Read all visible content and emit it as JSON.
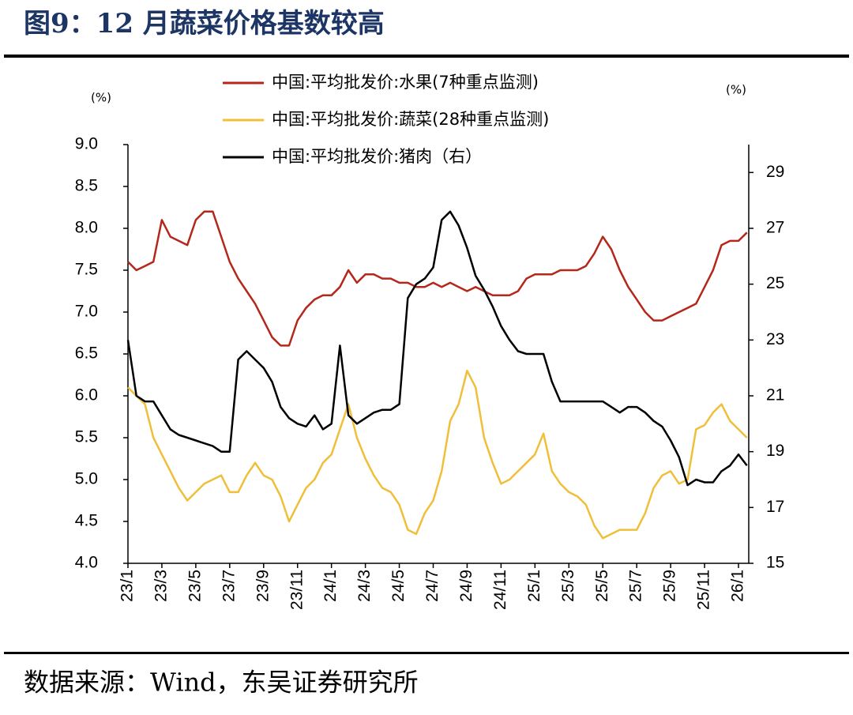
{
  "header": {
    "title": "图9：12 月蔬菜价格基数较高"
  },
  "chart_data": {
    "type": "line",
    "y_label": "(%)",
    "y2_label": "(%)",
    "x": [
      "23/1",
      null,
      null,
      null,
      "23/3",
      null,
      null,
      null,
      "23/5",
      null,
      null,
      null,
      "23/7",
      null,
      null,
      null,
      "23/9",
      null,
      null,
      null,
      "23/11",
      null,
      null,
      null,
      "24/1",
      null,
      null,
      null,
      "24/3",
      null,
      null,
      null,
      "24/5",
      null,
      null,
      null,
      "24/7",
      null,
      null,
      null,
      "24/9",
      null,
      null,
      null,
      "24/11",
      null,
      null,
      null,
      "25/1",
      null,
      null,
      null,
      "25/3",
      null,
      null,
      null,
      "25/5",
      null,
      null,
      null,
      "25/7",
      null,
      null,
      null,
      "25/9",
      null,
      null,
      null,
      "25/11",
      null,
      null,
      null,
      "26/1",
      null
    ],
    "series": [
      {
        "name": "中国:平均批发价:水果(7种重点监测)",
        "color": "#b5271b",
        "values": [
          7.6,
          7.5,
          7.55,
          7.6,
          8.1,
          7.9,
          7.85,
          7.8,
          8.1,
          8.2,
          8.2,
          7.9,
          7.6,
          7.4,
          7.25,
          7.1,
          6.9,
          6.7,
          6.6,
          6.6,
          6.9,
          7.05,
          7.15,
          7.2,
          7.2,
          7.3,
          7.5,
          7.35,
          7.45,
          7.45,
          7.4,
          7.4,
          7.35,
          7.35,
          7.3,
          7.3,
          7.35,
          7.3,
          7.35,
          7.3,
          7.25,
          7.3,
          7.25,
          7.2,
          7.2,
          7.2,
          7.25,
          7.4,
          7.45,
          7.45,
          7.45,
          7.5,
          7.5,
          7.5,
          7.55,
          7.7,
          7.9,
          7.75,
          7.5,
          7.3,
          7.15,
          7.0,
          6.9,
          6.9,
          6.95,
          7.0,
          7.05,
          7.1,
          7.3,
          7.5,
          7.8,
          7.85,
          7.85,
          7.95
        ]
      },
      {
        "name": "中国:平均批发价:蔬菜(28种重点监测)",
        "color": "#f0bf3a",
        "values": [
          6.1,
          6.0,
          5.9,
          5.5,
          5.3,
          5.1,
          4.9,
          4.75,
          4.85,
          4.95,
          5.0,
          5.05,
          4.85,
          4.85,
          5.05,
          5.2,
          5.05,
          5.0,
          4.8,
          4.5,
          4.7,
          4.9,
          5.0,
          5.2,
          5.3,
          5.6,
          5.9,
          5.5,
          5.25,
          5.05,
          4.9,
          4.85,
          4.7,
          4.4,
          4.35,
          4.6,
          4.75,
          5.1,
          5.7,
          5.9,
          6.3,
          6.1,
          5.5,
          5.2,
          4.95,
          5.0,
          5.1,
          5.2,
          5.3,
          5.55,
          5.1,
          4.95,
          4.85,
          4.8,
          4.7,
          4.45,
          4.3,
          4.35,
          4.4,
          4.4,
          4.4,
          4.6,
          4.9,
          5.05,
          5.1,
          4.95,
          5.0,
          5.6,
          5.65,
          5.8,
          5.9,
          5.7,
          5.6,
          5.5
        ]
      },
      {
        "name": "中国:平均批发价:猪肉（右）",
        "color": "#000000",
        "axis": "y2",
        "values": [
          23.0,
          21.0,
          20.8,
          20.8,
          20.3,
          19.8,
          19.6,
          19.5,
          19.4,
          19.3,
          19.2,
          19.0,
          19.0,
          22.3,
          22.6,
          22.3,
          22.0,
          21.5,
          20.6,
          20.2,
          20.0,
          19.9,
          20.3,
          19.8,
          20.0,
          22.8,
          20.3,
          20.0,
          20.2,
          20.4,
          20.5,
          20.5,
          20.7,
          24.5,
          25.0,
          25.2,
          25.6,
          27.3,
          27.6,
          27.1,
          26.3,
          25.3,
          24.8,
          24.2,
          23.5,
          23.0,
          22.6,
          22.5,
          22.5,
          22.5,
          21.5,
          20.8,
          20.8,
          20.8,
          20.8,
          20.8,
          20.8,
          20.6,
          20.4,
          20.6,
          20.6,
          20.4,
          20.1,
          19.9,
          19.4,
          18.8,
          17.8,
          18.0,
          17.9,
          17.9,
          18.3,
          18.5,
          18.9,
          18.5
        ]
      }
    ],
    "ylim": [
      4,
      9
    ],
    "yticks": [
      {
        "value": 4,
        "label": "4.0"
      },
      4.5,
      {
        "value": 5,
        "label": "5.0"
      },
      5.5,
      {
        "value": 6,
        "label": "6.0"
      },
      6.5,
      {
        "value": 7,
        "label": "7.0"
      },
      7.5,
      {
        "value": 8,
        "label": "8.0"
      },
      8.5,
      {
        "value": 9,
        "label": "9.0"
      }
    ],
    "y2lim": [
      15,
      30
    ],
    "y2ticks": [
      15,
      17,
      19,
      21,
      23,
      25,
      27,
      29
    ]
  },
  "footer": {
    "source": "数据来源：Wind，东吴证券研究所"
  }
}
